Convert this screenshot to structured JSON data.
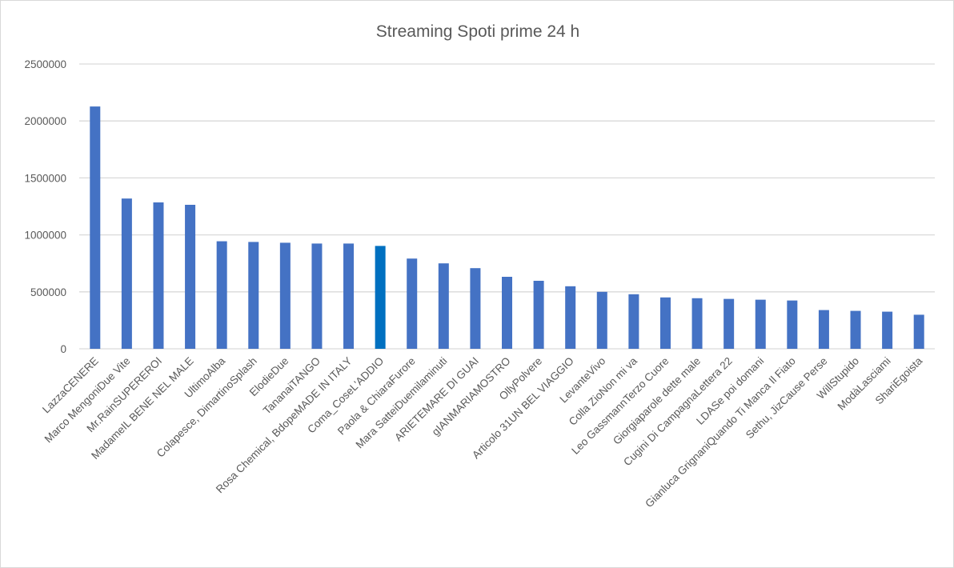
{
  "chart_data": {
    "type": "bar",
    "title": "Streaming Spoti prime 24 h",
    "xlabel": "",
    "ylabel": "",
    "ylim": [
      0,
      2500000
    ],
    "yticks": [
      0,
      500000,
      1000000,
      1500000,
      2000000,
      2500000
    ],
    "grid": true,
    "legend": "none",
    "colors": {
      "bar": "#4472C4",
      "highlight_bar": "#0070C0",
      "grid": "#D9D9D9",
      "text": "#595959"
    },
    "highlight_index": 9,
    "categories": [
      "LazzaCENERE",
      "Marco MengoniDue Vite",
      "Mr.RainSUPEREROI",
      "MadameIL BENE NEL MALE",
      "UltimoAlba",
      "Colapesce, DimartinoSplash",
      "ElodieDue",
      "TananaiTANGO",
      "Rosa Chemical, BdopeMADE IN ITALY",
      "Coma_CoseL'ADDIO",
      "Paola & ChiaraFurore",
      "Mara SatteiDuemilaminuti",
      "ARIETEMARE DI GUAI",
      "gIANMARIAMOSTRO",
      "OllyPolvere",
      "Articolo 31UN BEL VIAGGIO",
      "LevanteVivo",
      "Colla ZioNon mi va",
      "Leo GassmannTerzo Cuore",
      "Giorgiaparole dette male",
      "Cugini Di CampagnaLettera 22",
      "LDASe poi domani",
      "Gianluca GrignaniQuando Ti Manca Il Fiato",
      "Sethu, JizCause Perse",
      "WillStupido",
      "ModàLasciami",
      "ShariEgoista"
    ],
    "values": [
      2127000,
      1319000,
      1285000,
      1264000,
      944000,
      938000,
      931000,
      924000,
      924000,
      903000,
      792000,
      750000,
      708000,
      632000,
      597000,
      549000,
      500000,
      479000,
      451000,
      444000,
      438000,
      431000,
      424000,
      340000,
      333000,
      326000,
      299000
    ]
  }
}
